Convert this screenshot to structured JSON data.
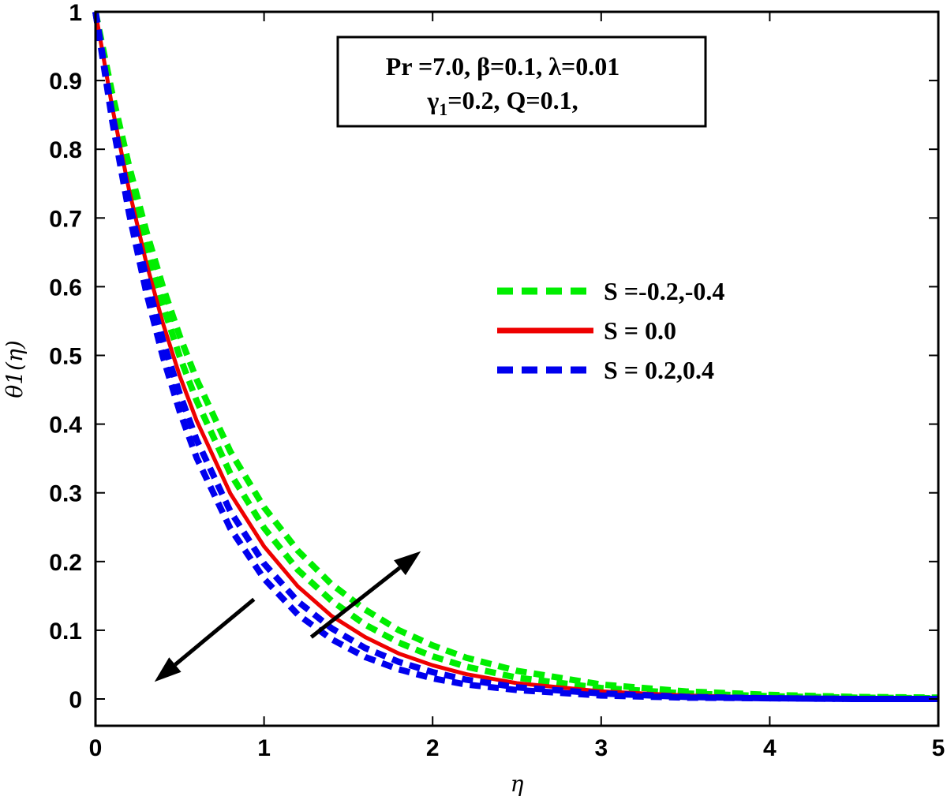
{
  "chart_data": {
    "type": "line",
    "title": "",
    "xlabel": "η",
    "ylabel": "θ1(η)",
    "xlim": [
      0,
      5
    ],
    "ylim": [
      0,
      1
    ],
    "xticks": [
      0,
      1,
      2,
      3,
      4,
      5
    ],
    "xtick_labels": [
      "0",
      "1",
      "2",
      "3",
      "4",
      "5"
    ],
    "yticks": [
      0,
      0.1,
      0.2,
      0.3,
      0.4,
      0.5,
      0.6,
      0.7,
      0.8,
      0.9,
      1
    ],
    "ytick_labels": [
      "0",
      "0.1",
      "0.2",
      "0.3",
      "0.4",
      "0.5",
      "0.6",
      "0.7",
      "0.8",
      "0.9",
      "1"
    ],
    "grid": false,
    "legend_position": "right",
    "series": [
      {
        "name": "S = -0.2",
        "legend_group": "S =-0.2,-0.4",
        "color": "#00ee00",
        "style": "dashed",
        "x": [
          0,
          0.1,
          0.2,
          0.3,
          0.4,
          0.5,
          0.6,
          0.8,
          1.0,
          1.2,
          1.4,
          1.6,
          1.8,
          2.0,
          2.2,
          2.5,
          3.0,
          3.5,
          4.0,
          4.5,
          5.0
        ],
        "y": [
          1.0,
          0.87,
          0.757,
          0.658,
          0.573,
          0.498,
          0.434,
          0.328,
          0.249,
          0.188,
          0.143,
          0.108,
          0.082,
          0.062,
          0.047,
          0.031,
          0.016,
          0.008,
          0.004,
          0.002,
          0.001
        ]
      },
      {
        "name": "S = -0.4",
        "legend_group": "S =-0.2,-0.4",
        "color": "#00ee00",
        "style": "dashed",
        "x": [
          0,
          0.1,
          0.2,
          0.3,
          0.4,
          0.5,
          0.6,
          0.8,
          1.0,
          1.2,
          1.4,
          1.6,
          1.8,
          2.0,
          2.2,
          2.5,
          3.0,
          3.5,
          4.0,
          4.5,
          5.0
        ],
        "y": [
          1.0,
          0.88,
          0.775,
          0.682,
          0.6,
          0.528,
          0.465,
          0.36,
          0.279,
          0.216,
          0.167,
          0.13,
          0.1,
          0.078,
          0.06,
          0.041,
          0.021,
          0.011,
          0.006,
          0.003,
          0.002
        ]
      },
      {
        "name": "S = 0.0",
        "legend_group": "S = 0.0",
        "color": "#ee0000",
        "style": "solid",
        "x": [
          0,
          0.1,
          0.2,
          0.3,
          0.4,
          0.5,
          0.6,
          0.8,
          1.0,
          1.2,
          1.4,
          1.6,
          1.8,
          2.0,
          2.2,
          2.5,
          3.0,
          3.5,
          4.0,
          4.5,
          5.0
        ],
        "y": [
          1.0,
          0.86,
          0.74,
          0.636,
          0.547,
          0.47,
          0.405,
          0.299,
          0.222,
          0.164,
          0.121,
          0.09,
          0.066,
          0.049,
          0.036,
          0.023,
          0.011,
          0.005,
          0.002,
          0.001,
          0.0
        ]
      },
      {
        "name": "S = 0.2",
        "legend_group": "S = 0.2,0.4",
        "color": "#0000ee",
        "style": "dashed",
        "x": [
          0,
          0.1,
          0.2,
          0.3,
          0.4,
          0.5,
          0.6,
          0.8,
          1.0,
          1.2,
          1.4,
          1.6,
          1.8,
          2.0,
          2.2,
          2.5,
          3.0,
          3.5,
          4.0,
          4.5,
          5.0
        ],
        "y": [
          1.0,
          0.85,
          0.723,
          0.614,
          0.522,
          0.444,
          0.377,
          0.273,
          0.197,
          0.142,
          0.103,
          0.074,
          0.054,
          0.039,
          0.028,
          0.017,
          0.008,
          0.003,
          0.001,
          0.0,
          0.0
        ]
      },
      {
        "name": "S = 0.4",
        "legend_group": "S = 0.2,0.4",
        "color": "#0000ee",
        "style": "dashed",
        "x": [
          0,
          0.1,
          0.2,
          0.3,
          0.4,
          0.5,
          0.6,
          0.8,
          1.0,
          1.2,
          1.4,
          1.6,
          1.8,
          2.0,
          2.2,
          2.5,
          3.0,
          3.5,
          4.0,
          4.5,
          5.0
        ],
        "y": [
          1.0,
          0.84,
          0.706,
          0.593,
          0.498,
          0.418,
          0.351,
          0.248,
          0.175,
          0.123,
          0.087,
          0.061,
          0.043,
          0.03,
          0.021,
          0.013,
          0.005,
          0.002,
          0.001,
          0.0,
          0.0
        ]
      }
    ],
    "legend": [
      {
        "label": "S =-0.2,-0.4",
        "color": "#00ee00",
        "style": "dashed"
      },
      {
        "label": "S = 0.0",
        "color": "#ee0000",
        "style": "solid"
      },
      {
        "label": "S = 0.2,0.4",
        "color": "#0000ee",
        "style": "dashed"
      }
    ],
    "annotation": {
      "line1": "Pr =7.0, β=0.1, λ=0.01",
      "line2_gamma": "γ",
      "line2_sub": "1",
      "line2_rest": "=0.2, Q=0.1,"
    },
    "arrows": [
      {
        "from": [
          1.28,
          0.09
        ],
        "to": [
          1.93,
          0.215
        ]
      },
      {
        "from": [
          0.94,
          0.145
        ],
        "to": [
          0.35,
          0.025
        ]
      }
    ]
  }
}
